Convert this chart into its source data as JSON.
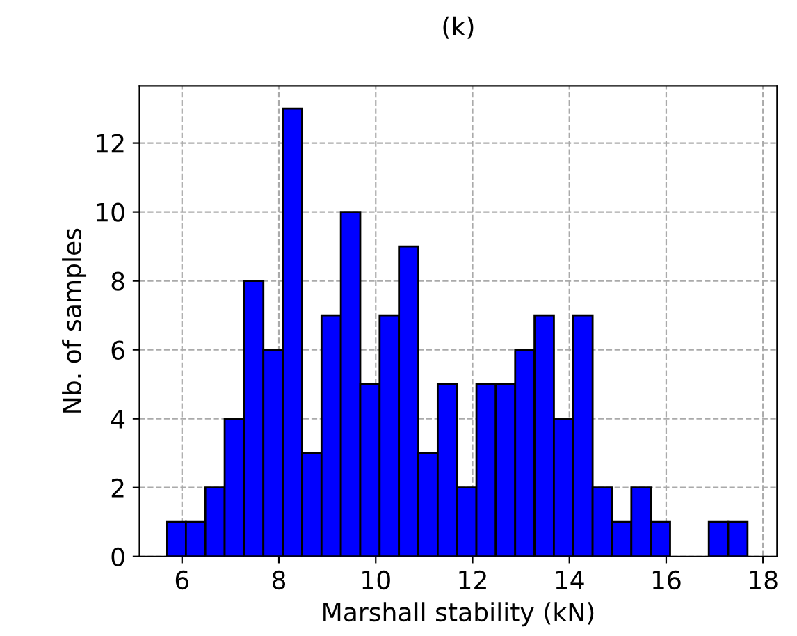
{
  "chart_data": {
    "type": "histogram",
    "title": "(k)",
    "xlabel": "Marshall stability (kN)",
    "ylabel": "Nb. of samples",
    "bins": [
      5.68,
      6.08,
      6.48,
      6.88,
      7.28,
      7.68,
      8.08,
      8.48,
      8.88,
      9.28,
      9.68,
      10.08,
      10.48,
      10.88,
      11.28,
      11.68,
      12.08,
      12.48,
      12.88,
      13.28,
      13.68,
      14.08,
      14.48,
      14.88,
      15.28,
      15.68,
      16.08,
      16.48,
      16.88,
      17.28,
      17.68
    ],
    "values": [
      1,
      1,
      2,
      4,
      8,
      6,
      13,
      3,
      7,
      10,
      5,
      7,
      9,
      3,
      5,
      2,
      5,
      5,
      6,
      7,
      4,
      7,
      2,
      1,
      2,
      1,
      0,
      0,
      1,
      1
    ],
    "color": "#0000ff",
    "xlim": [
      5.12,
      18.29
    ],
    "ylim": [
      0,
      13.66
    ],
    "xticks": [
      6,
      8,
      10,
      12,
      14,
      16,
      18
    ],
    "yticks": [
      0,
      2,
      4,
      6,
      8,
      10,
      12
    ],
    "grid": true
  }
}
